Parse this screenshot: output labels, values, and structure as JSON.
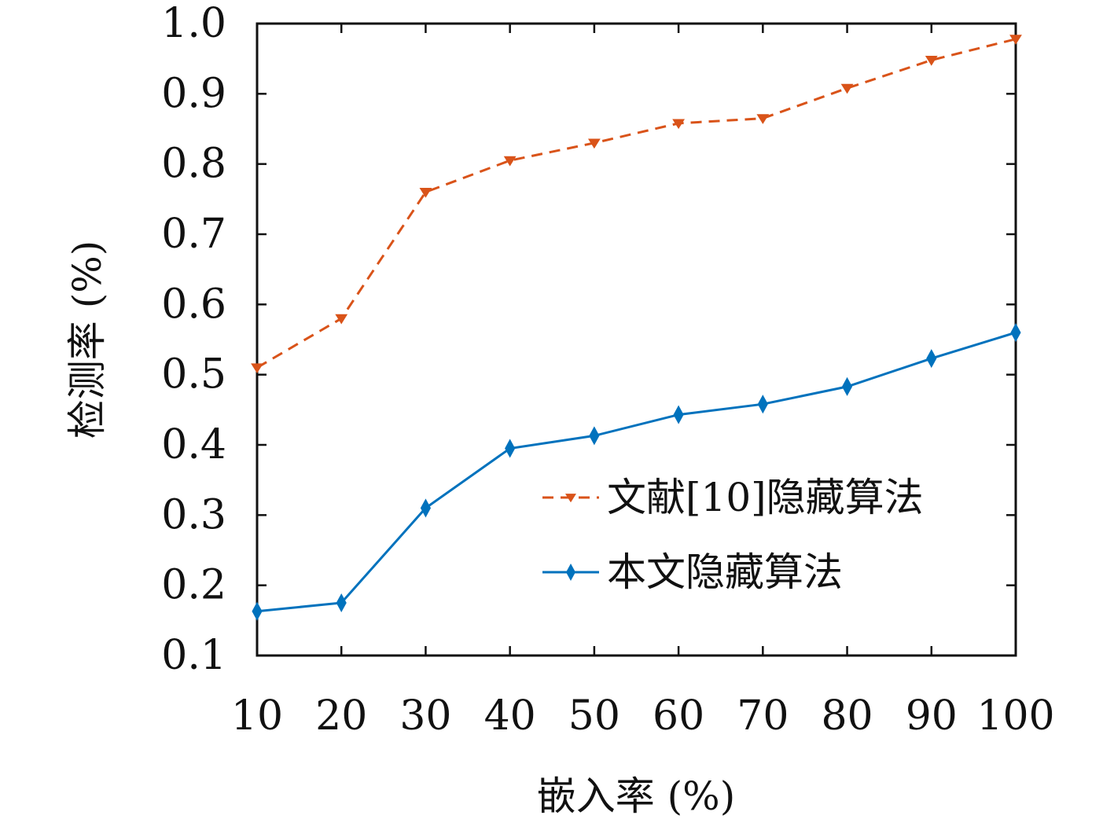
{
  "chart_data": {
    "type": "line",
    "title": "",
    "xlabel": "嵌入率 (%)",
    "ylabel": "检测率 (%)",
    "x": [
      10,
      20,
      30,
      40,
      50,
      60,
      70,
      80,
      90,
      100
    ],
    "x_tick_labels": [
      "10",
      "20",
      "30",
      "40",
      "50",
      "60",
      "70",
      "80",
      "90",
      "100"
    ],
    "y_tick_labels": [
      "0.1",
      "0.2",
      "0.3",
      "0.4",
      "0.5",
      "0.6",
      "0.7",
      "0.8",
      "0.9",
      "1.0"
    ],
    "ylim": [
      0.1,
      1.0
    ],
    "xlim": [
      10,
      100
    ],
    "grid": false,
    "legend_position": "center-right",
    "series": [
      {
        "name": "文献[10]隐藏算法",
        "values": [
          0.51,
          0.58,
          0.76,
          0.805,
          0.83,
          0.858,
          0.865,
          0.908,
          0.948,
          0.978
        ],
        "color": "#d95319",
        "line_style": "dashed",
        "marker": "triangle-down"
      },
      {
        "name": "本文隐藏算法",
        "values": [
          0.163,
          0.175,
          0.31,
          0.395,
          0.413,
          0.443,
          0.458,
          0.483,
          0.523,
          0.56
        ],
        "color": "#0072bd",
        "line_style": "solid",
        "marker": "diamond"
      }
    ]
  }
}
